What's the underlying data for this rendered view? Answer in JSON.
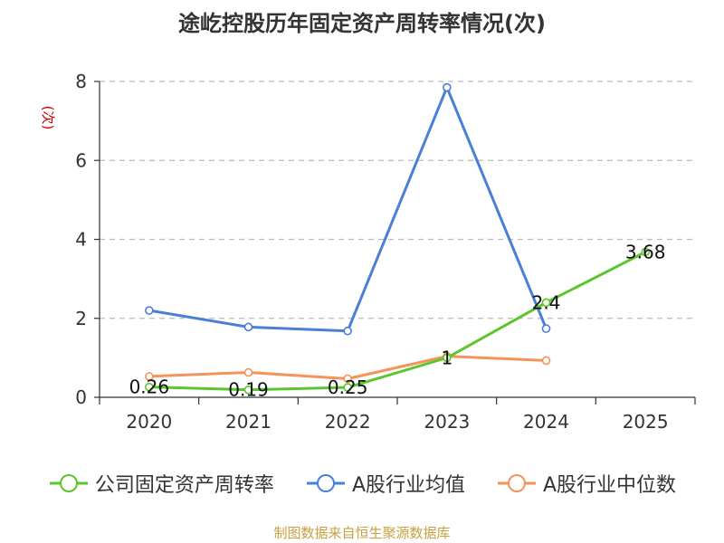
{
  "chart_data": {
    "type": "line",
    "title": "途屹控股历年固定资产周转率情况(次)",
    "ylabel": "(次)",
    "xlabel": "",
    "categories": [
      "2020",
      "2021",
      "2022",
      "2023",
      "2024",
      "2025"
    ],
    "ylim": [
      0,
      8
    ],
    "yticks": [
      0,
      2,
      4,
      6,
      8
    ],
    "grid": true,
    "legend_position": "bottom",
    "series": [
      {
        "name": "公司固定资产周转率",
        "color": "#5bc52d",
        "values": [
          0.26,
          0.19,
          0.25,
          1,
          2.4,
          3.68
        ],
        "labels": [
          "0.26",
          "0.19",
          "0.25",
          "1",
          "2.4",
          "3.68"
        ]
      },
      {
        "name": "A股行业均值",
        "color": "#4a7fd8",
        "values": [
          2.2,
          1.78,
          1.68,
          7.85,
          1.74,
          null
        ],
        "labels": null
      },
      {
        "name": "A股行业中位数",
        "color": "#f4935a",
        "values": [
          0.53,
          0.63,
          0.47,
          1.04,
          0.93,
          null
        ],
        "labels": null
      }
    ]
  },
  "source_note": "制图数据来自恒生聚源数据库"
}
